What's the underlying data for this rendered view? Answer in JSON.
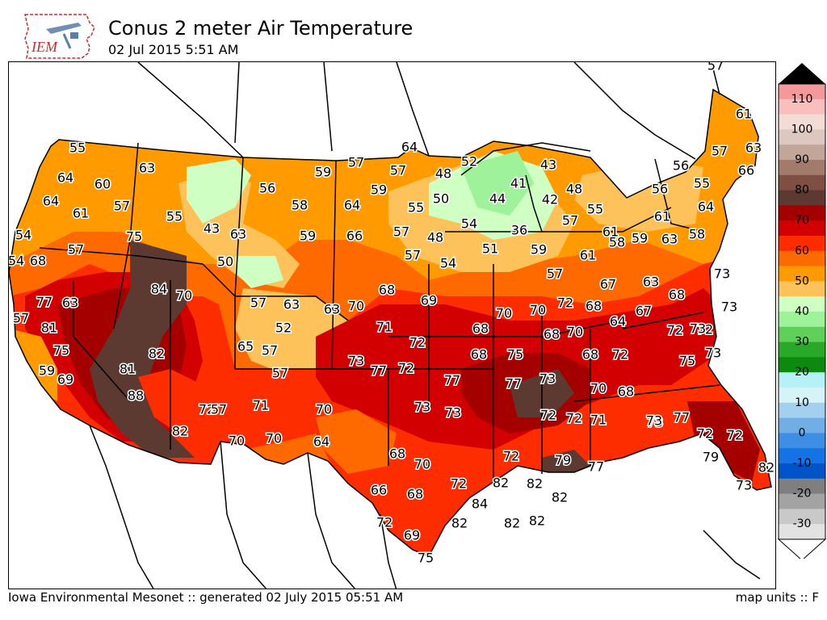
{
  "header": {
    "logo_text": "IEM",
    "title": "Conus 2 meter Air Temperature",
    "subtitle": "02 Jul 2015 5:51 AM"
  },
  "footer": {
    "left": "Iowa Environmental Mesonet :: generated 02 July 2015 05:51 AM",
    "right": "map units :: F"
  },
  "colorbar": {
    "labels": [
      "110",
      "100",
      "90",
      "80",
      "70",
      "60",
      "50",
      "40",
      "30",
      "20",
      "10",
      "0",
      "-10",
      "-20",
      "-30"
    ],
    "colors": {
      "c115": "#f4999b",
      "c110": "#f9bebe",
      "c105": "#f3dcd5",
      "c100": "#dcc8c0",
      "c95": "#c2a69a",
      "c90": "#a37b6c",
      "c85": "#7e4f42",
      "c80": "#5c3a31",
      "c75": "#a50000",
      "c70": "#d20000",
      "c65": "#fd2d00",
      "c60": "#ff6a00",
      "c55": "#ff9b00",
      "c50": "#fdc25a",
      "c45": "#cfffc2",
      "c40": "#9ef29a",
      "c35": "#5fd15b",
      "c30": "#2aa827",
      "c25": "#0c8a10",
      "c20": "#b7f1f8",
      "c15": "#d6f4f8",
      "c10": "#a4d0f0",
      "c5": "#72aee6",
      "c0": "#3f8ee5",
      "cm5": "#1474e6",
      "cm10": "#0054c8",
      "cm15": "#7f7f7f",
      "cm20": "#a3a3a3",
      "cm25": "#c9c9c9",
      "cm30": "#e2e2e2"
    }
  },
  "stations": [
    {
      "v": "57"
    },
    {
      "v": "61"
    },
    {
      "v": "57"
    },
    {
      "v": "63"
    },
    {
      "v": "66"
    },
    {
      "v": "55"
    },
    {
      "v": "64"
    },
    {
      "v": "60"
    },
    {
      "v": "63"
    },
    {
      "v": "64"
    },
    {
      "v": "61"
    },
    {
      "v": "57"
    },
    {
      "v": "55"
    },
    {
      "v": "56"
    },
    {
      "v": "43"
    },
    {
      "v": "63"
    },
    {
      "v": "50"
    },
    {
      "v": "75"
    },
    {
      "v": "54"
    },
    {
      "v": "57"
    },
    {
      "v": "54"
    },
    {
      "v": "68"
    },
    {
      "v": "59"
    },
    {
      "v": "57"
    },
    {
      "v": "57"
    },
    {
      "v": "58"
    },
    {
      "v": "59"
    },
    {
      "v": "64"
    },
    {
      "v": "66"
    },
    {
      "v": "64"
    },
    {
      "v": "59"
    },
    {
      "v": "55"
    },
    {
      "v": "57"
    },
    {
      "v": "48"
    },
    {
      "v": "50"
    },
    {
      "v": "52"
    },
    {
      "v": "48"
    },
    {
      "v": "54"
    },
    {
      "v": "57"
    },
    {
      "v": "41"
    },
    {
      "v": "43"
    },
    {
      "v": "44"
    },
    {
      "v": "42"
    },
    {
      "v": "48"
    },
    {
      "v": "54"
    },
    {
      "v": "51"
    },
    {
      "v": "36"
    },
    {
      "v": "55"
    },
    {
      "v": "57"
    },
    {
      "v": "59"
    },
    {
      "v": "61"
    },
    {
      "v": "61"
    },
    {
      "v": "56"
    },
    {
      "v": "56"
    },
    {
      "v": "55"
    },
    {
      "v": "61"
    },
    {
      "v": "58"
    },
    {
      "v": "59"
    },
    {
      "v": "64"
    },
    {
      "v": "63"
    },
    {
      "v": "58"
    },
    {
      "v": "57"
    },
    {
      "v": "84"
    },
    {
      "v": "70"
    },
    {
      "v": "77"
    },
    {
      "v": "63"
    },
    {
      "v": "57"
    },
    {
      "v": "63"
    },
    {
      "v": "63"
    },
    {
      "v": "70"
    },
    {
      "v": "68"
    },
    {
      "v": "69"
    },
    {
      "v": "73"
    },
    {
      "v": "57"
    },
    {
      "v": "81"
    },
    {
      "v": "75"
    },
    {
      "v": "82"
    },
    {
      "v": "52"
    },
    {
      "v": "65"
    },
    {
      "v": "57"
    },
    {
      "v": "71"
    },
    {
      "v": "72"
    },
    {
      "v": "68"
    },
    {
      "v": "70"
    },
    {
      "v": "70"
    },
    {
      "v": "72"
    },
    {
      "v": "68"
    },
    {
      "v": "67"
    },
    {
      "v": "63"
    },
    {
      "v": "68"
    },
    {
      "v": "73"
    },
    {
      "v": "72"
    },
    {
      "v": "59"
    },
    {
      "v": "81"
    },
    {
      "v": "69"
    },
    {
      "v": "88"
    },
    {
      "v": "57"
    },
    {
      "v": "73"
    },
    {
      "v": "77"
    },
    {
      "v": "72"
    },
    {
      "v": "68"
    },
    {
      "v": "75"
    },
    {
      "v": "68"
    },
    {
      "v": "70"
    },
    {
      "v": "64"
    },
    {
      "v": "67"
    },
    {
      "v": "72"
    },
    {
      "v": "73"
    },
    {
      "v": "77"
    },
    {
      "v": "77"
    },
    {
      "v": "73"
    },
    {
      "v": "68"
    },
    {
      "v": "72"
    },
    {
      "v": "75"
    },
    {
      "v": "73"
    },
    {
      "v": "72"
    },
    {
      "v": "57"
    },
    {
      "v": "71"
    },
    {
      "v": "70"
    },
    {
      "v": "73"
    },
    {
      "v": "73"
    },
    {
      "v": "72"
    },
    {
      "v": "70"
    },
    {
      "v": "68"
    },
    {
      "v": "73"
    },
    {
      "v": "82"
    },
    {
      "v": "70"
    },
    {
      "v": "70"
    },
    {
      "v": "64"
    },
    {
      "v": "72"
    },
    {
      "v": "71"
    },
    {
      "v": "73"
    },
    {
      "v": "77"
    },
    {
      "v": "72"
    },
    {
      "v": "72"
    },
    {
      "v": "68"
    },
    {
      "v": "70"
    },
    {
      "v": "72"
    },
    {
      "v": "79"
    },
    {
      "v": "77"
    },
    {
      "v": "79"
    },
    {
      "v": "82"
    },
    {
      "v": "66"
    },
    {
      "v": "68"
    },
    {
      "v": "72"
    },
    {
      "v": "82"
    },
    {
      "v": "82"
    },
    {
      "v": "82"
    },
    {
      "v": "73"
    },
    {
      "v": "84"
    },
    {
      "v": "72"
    },
    {
      "v": "82"
    },
    {
      "v": "82"
    },
    {
      "v": "82"
    },
    {
      "v": "69"
    },
    {
      "v": "75"
    }
  ]
}
